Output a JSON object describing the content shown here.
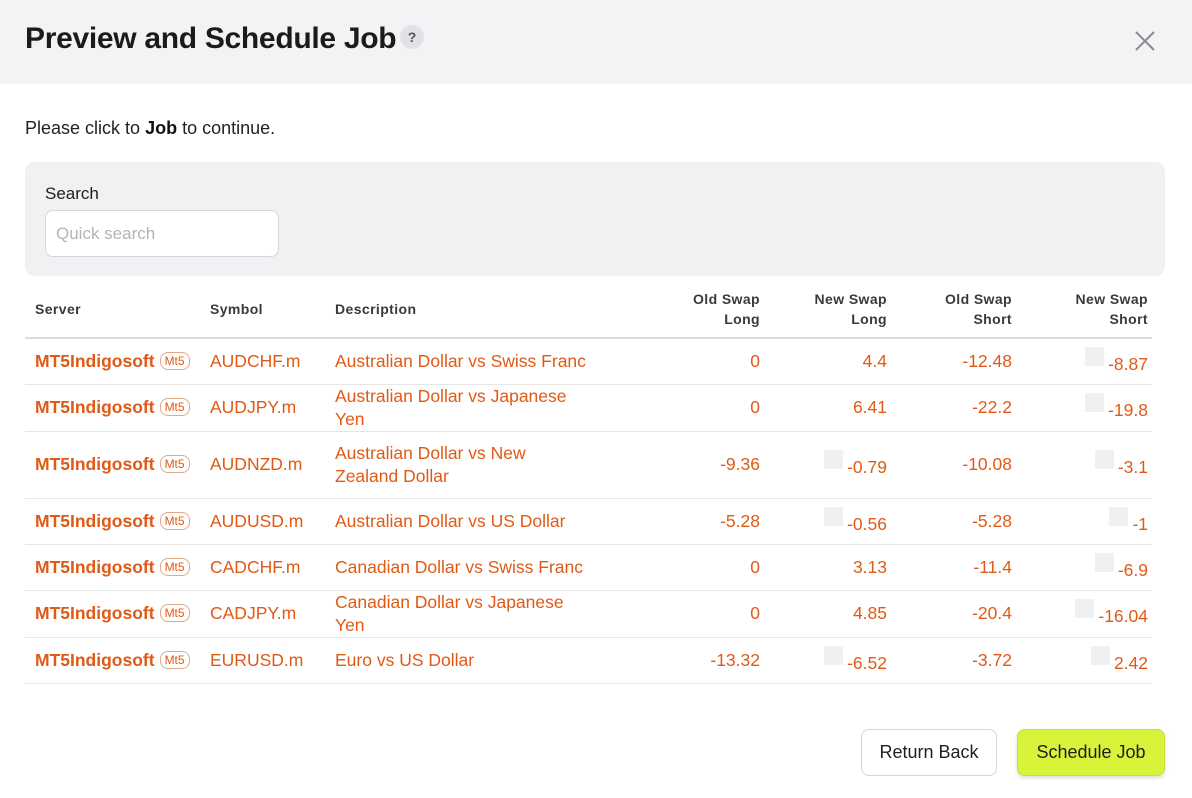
{
  "header": {
    "title": "Preview and Schedule Job",
    "help_glyph": "?",
    "help_icon": "question-circle-icon",
    "close_icon": "close-x-icon"
  },
  "intro": {
    "before": "Please click to ",
    "bold": "Job",
    "after": " to continue."
  },
  "search": {
    "label": "Search",
    "placeholder": "Quick search",
    "value": ""
  },
  "table": {
    "columns": [
      {
        "key": "server",
        "line1": "Server",
        "line2": ""
      },
      {
        "key": "symbol",
        "line1": "Symbol",
        "line2": ""
      },
      {
        "key": "description",
        "line1": "Description",
        "line2": ""
      },
      {
        "key": "old_swap_long",
        "line1": "Old Swap",
        "line2": "Long"
      },
      {
        "key": "new_swap_long",
        "line1": "New Swap",
        "line2": "Long"
      },
      {
        "key": "old_swap_short",
        "line1": "Old Swap",
        "line2": "Short"
      },
      {
        "key": "new_swap_short",
        "line1": "New Swap",
        "line2": "Short"
      }
    ],
    "rows": [
      {
        "server": "MT5Indigosoft",
        "badge": "Mt5",
        "symbol": "AUDCHF.m",
        "description": "Australian Dollar vs Swiss Franc",
        "old_swap_long": "0",
        "new_swap_long": "4.4",
        "old_swap_short": "-12.48",
        "new_swap_short": "-8.87",
        "marker_long": false,
        "marker_short": true
      },
      {
        "server": "MT5Indigosoft",
        "badge": "Mt5",
        "symbol": "AUDJPY.m",
        "description": "Australian Dollar vs Japanese Yen",
        "old_swap_long": "0",
        "new_swap_long": "6.41",
        "old_swap_short": "-22.2",
        "new_swap_short": "-19.8",
        "marker_long": false,
        "marker_short": true
      },
      {
        "server": "MT5Indigosoft",
        "badge": "Mt5",
        "symbol": "AUDNZD.m",
        "description": "Australian Dollar vs New Zealand Dollar",
        "old_swap_long": "-9.36",
        "new_swap_long": "-0.79",
        "old_swap_short": "-10.08",
        "new_swap_short": "-3.1",
        "marker_long": true,
        "marker_short": true
      },
      {
        "server": "MT5Indigosoft",
        "badge": "Mt5",
        "symbol": "AUDUSD.m",
        "description": "Australian Dollar vs US Dollar",
        "old_swap_long": "-5.28",
        "new_swap_long": "-0.56",
        "old_swap_short": "-5.28",
        "new_swap_short": "-1",
        "marker_long": true,
        "marker_short": true
      },
      {
        "server": "MT5Indigosoft",
        "badge": "Mt5",
        "symbol": "CADCHF.m",
        "description": "Canadian Dollar vs Swiss Franc",
        "old_swap_long": "0",
        "new_swap_long": "3.13",
        "old_swap_short": "-11.4",
        "new_swap_short": "-6.9",
        "marker_long": false,
        "marker_short": true
      },
      {
        "server": "MT5Indigosoft",
        "badge": "Mt5",
        "symbol": "CADJPY.m",
        "description": "Canadian Dollar vs Japanese Yen",
        "old_swap_long": "0",
        "new_swap_long": "4.85",
        "old_swap_short": "-20.4",
        "new_swap_short": "-16.04",
        "marker_long": false,
        "marker_short": true
      },
      {
        "server": "MT5Indigosoft",
        "badge": "Mt5",
        "symbol": "EURUSD.m",
        "description": "Euro vs US Dollar",
        "old_swap_long": "-13.32",
        "new_swap_long": "-6.52",
        "old_swap_short": "-3.72",
        "new_swap_short": "2.42",
        "marker_long": true,
        "marker_short": true
      }
    ]
  },
  "footer": {
    "back_label": "Return Back",
    "schedule_label": "Schedule Job"
  },
  "colors": {
    "accent": "#e05a16",
    "primary_button": "#d9f23a",
    "header_bg": "#f3f3f5"
  }
}
